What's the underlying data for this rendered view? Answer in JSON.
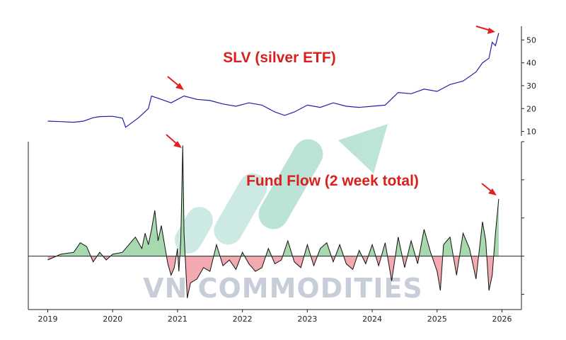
{
  "colors": {
    "price_line": "#1f1fa8",
    "flow_line": "#111111",
    "flow_positive": "#a8d8ae",
    "flow_negative": "#f2a9b0",
    "arrow": "#e02020",
    "watermark": "#c7ced9",
    "watermark_arrow": "#3daa8c"
  },
  "watermark": {
    "text": "VN COMMODITIES"
  },
  "chart_data": [
    {
      "type": "line",
      "title": "SLV (silver ETF)",
      "xlabel": "",
      "ylabel": "",
      "x_ticks": [
        "2019",
        "2020",
        "2021",
        "2022",
        "2023",
        "2024",
        "2025",
        "2026"
      ],
      "y_ticks": [
        10,
        20,
        30,
        40,
        50
      ],
      "xlim": [
        2018.7,
        2026.3
      ],
      "ylim": [
        8,
        56
      ],
      "series": [
        {
          "x": [
            2019.0,
            2019.2,
            2019.4,
            2019.55,
            2019.7,
            2019.8,
            2020.0,
            2020.15,
            2020.2,
            2020.4,
            2020.55,
            2020.6,
            2020.75,
            2020.9,
            2021.1,
            2021.3,
            2021.5,
            2021.7,
            2021.9,
            2022.1,
            2022.3,
            2022.5,
            2022.65,
            2022.8,
            2023.0,
            2023.2,
            2023.4,
            2023.6,
            2023.8,
            2024.0,
            2024.2,
            2024.4,
            2024.6,
            2024.8,
            2025.0,
            2025.2,
            2025.4,
            2025.6,
            2025.7,
            2025.8,
            2025.85,
            2025.9,
            2025.95
          ],
          "y": [
            14.5,
            14.3,
            14.0,
            14.5,
            16.0,
            16.5,
            16.6,
            15.8,
            11.8,
            16.0,
            20.0,
            25.5,
            24.0,
            22.5,
            25.5,
            24.0,
            23.5,
            22.0,
            21.0,
            22.5,
            21.5,
            18.5,
            17.0,
            18.5,
            21.5,
            20.5,
            22.5,
            21.0,
            20.5,
            21.0,
            21.5,
            27.0,
            26.5,
            28.5,
            27.5,
            30.5,
            32.0,
            36.0,
            40.0,
            42.0,
            49.0,
            47.5,
            53.0
          ]
        }
      ]
    },
    {
      "type": "area",
      "title": "Fund Flow (2 week total)",
      "xlabel": "",
      "ylabel": "",
      "x_ticks": [
        "2019",
        "2020",
        "2021",
        "2022",
        "2023",
        "2024",
        "2025",
        "2026"
      ],
      "xlim": [
        2018.7,
        2026.3
      ],
      "ylim": [
        -1.4,
        3.0
      ],
      "series": [
        {
          "x": [
            2019.0,
            2019.2,
            2019.4,
            2019.5,
            2019.6,
            2019.7,
            2019.8,
            2019.9,
            2020.0,
            2020.15,
            2020.25,
            2020.35,
            2020.45,
            2020.5,
            2020.55,
            2020.6,
            2020.65,
            2020.7,
            2020.75,
            2020.8,
            2020.85,
            2020.9,
            2020.95,
            2021.0,
            2021.02,
            2021.05,
            2021.08,
            2021.1,
            2021.15,
            2021.2,
            2021.3,
            2021.4,
            2021.5,
            2021.6,
            2021.7,
            2021.8,
            2021.9,
            2022.0,
            2022.1,
            2022.2,
            2022.3,
            2022.4,
            2022.5,
            2022.6,
            2022.7,
            2022.8,
            2022.9,
            2023.0,
            2023.1,
            2023.2,
            2023.3,
            2023.4,
            2023.5,
            2023.6,
            2023.7,
            2023.8,
            2023.9,
            2024.0,
            2024.1,
            2024.2,
            2024.3,
            2024.4,
            2024.5,
            2024.6,
            2024.7,
            2024.8,
            2024.9,
            2025.0,
            2025.05,
            2025.1,
            2025.2,
            2025.3,
            2025.4,
            2025.5,
            2025.6,
            2025.7,
            2025.75,
            2025.8,
            2025.85,
            2025.9,
            2025.95
          ],
          "y": [
            -0.1,
            0.05,
            0.1,
            0.35,
            0.25,
            -0.15,
            0.1,
            -0.1,
            0.05,
            0.1,
            0.3,
            0.5,
            0.2,
            0.6,
            0.3,
            0.7,
            1.2,
            0.4,
            0.8,
            0.3,
            -0.2,
            -0.5,
            -0.3,
            0.2,
            -0.4,
            0.4,
            2.9,
            0.6,
            -1.1,
            -0.7,
            -0.6,
            -0.3,
            -0.4,
            0.3,
            -0.25,
            -0.1,
            -0.35,
            0.1,
            -0.2,
            -0.4,
            -0.3,
            0.2,
            -0.2,
            -0.1,
            0.4,
            -0.15,
            -0.3,
            0.3,
            -0.25,
            0.2,
            0.35,
            -0.15,
            0.3,
            -0.2,
            -0.35,
            0.15,
            -0.2,
            0.3,
            -0.25,
            0.35,
            -0.65,
            0.5,
            -0.3,
            0.4,
            -0.2,
            0.7,
            0.1,
            -0.4,
            -0.9,
            0.3,
            0.5,
            -0.5,
            0.6,
            0.2,
            -0.6,
            0.9,
            0.4,
            -0.9,
            -0.5,
            0.6,
            1.5
          ]
        }
      ]
    }
  ]
}
